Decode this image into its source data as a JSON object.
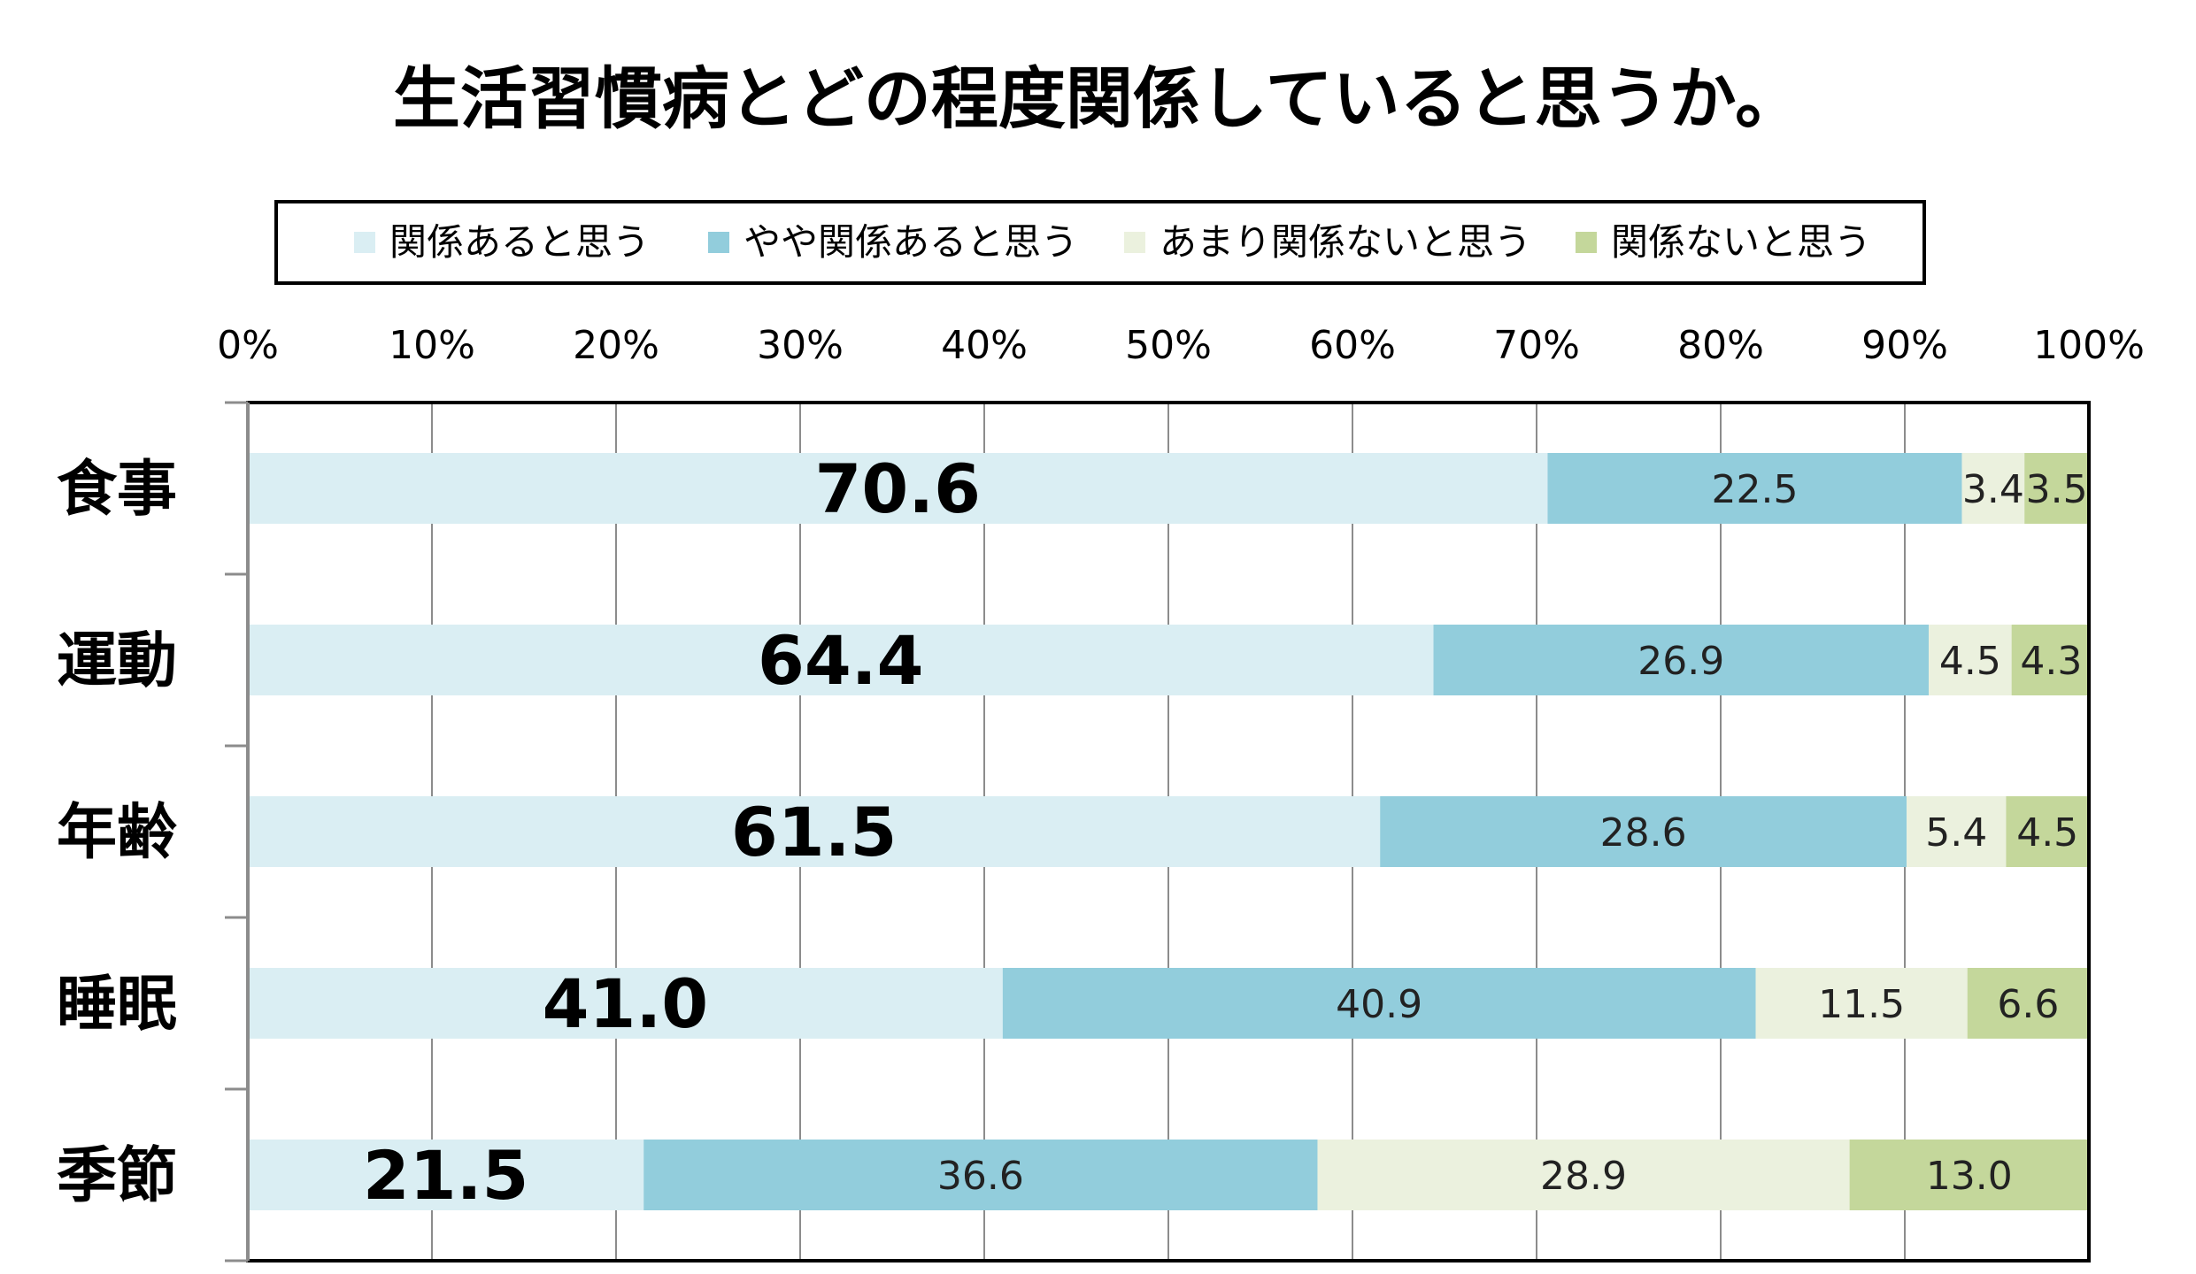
{
  "chart_data": {
    "type": "bar",
    "orientation": "horizontal",
    "stacked": true,
    "title": "生活習慣病とどの程度関係していると思うか。",
    "categories": [
      "食事",
      "運動",
      "年齢",
      "睡眠",
      "季節"
    ],
    "series": [
      {
        "name": "関係あると思う",
        "color": "#daeef3",
        "values": [
          70.6,
          64.4,
          61.5,
          41.0,
          21.5
        ],
        "labels": [
          "70.6",
          "64.4",
          "61.5",
          "41.0",
          "21.5"
        ]
      },
      {
        "name": "やや関係あると思う",
        "color": "#92cddc",
        "values": [
          22.5,
          26.9,
          28.6,
          40.9,
          36.6
        ],
        "labels": [
          "22.5",
          "26.9",
          "28.6",
          "40.9",
          "36.6"
        ]
      },
      {
        "name": "あまり関係ないと思う",
        "color": "#ebf1de",
        "values": [
          3.4,
          4.5,
          5.4,
          11.5,
          28.9
        ],
        "labels": [
          "3.4",
          "4.5",
          "5.4",
          "11.5",
          "28.9"
        ]
      },
      {
        "name": "関係ないと思う",
        "color": "#c4d79b",
        "values": [
          3.5,
          4.3,
          4.5,
          6.6,
          13.0
        ],
        "labels": [
          "3.5",
          "4.3",
          "4.5",
          "6.6",
          "13.0"
        ]
      }
    ],
    "x_ticks": [
      "0%",
      "10%",
      "20%",
      "30%",
      "40%",
      "50%",
      "60%",
      "70%",
      "80%",
      "90%",
      "100%"
    ],
    "xlim": [
      0,
      100
    ],
    "xlabel": "",
    "ylabel": "",
    "grid": true,
    "legend_position": "top"
  }
}
